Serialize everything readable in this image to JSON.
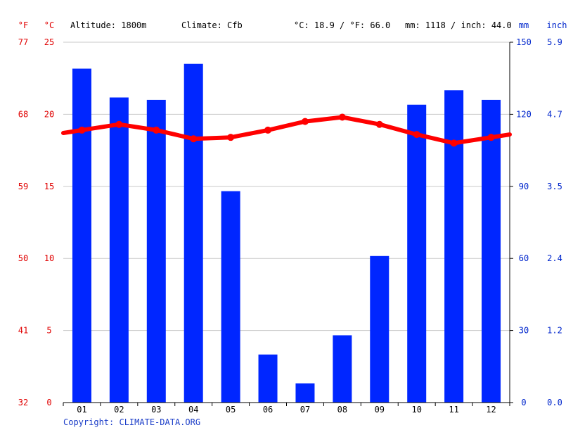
{
  "header": {
    "f_unit": "°F",
    "c_unit": "°C",
    "altitude": "Altitude: 1800m",
    "climate": "Climate: Cfb",
    "temp_summary": "°C: 18.9 / °F: 66.0",
    "precip_summary": "mm: 1118 / inch: 44.0",
    "mm_unit": "mm",
    "inch_unit": "inch"
  },
  "footer": {
    "copyright": "Copyright: CLIMATE-DATA.ORG"
  },
  "colors": {
    "bar": "#0026ff",
    "line": "#ff0000",
    "grid": "#c8c8c8",
    "axis": "#000000",
    "right_text": "#0026cc",
    "left_text": "#e00000",
    "copyright": "#1a3cc8"
  },
  "chart_data": {
    "type": "bar",
    "categories": [
      "01",
      "02",
      "03",
      "04",
      "05",
      "06",
      "07",
      "08",
      "09",
      "10",
      "11",
      "12"
    ],
    "precip_mm": [
      139,
      127,
      126,
      141,
      88,
      20,
      8,
      28,
      61,
      124,
      130,
      126
    ],
    "temp_c": [
      18.9,
      19.3,
      18.9,
      18.3,
      18.4,
      18.9,
      19.5,
      19.8,
      19.3,
      18.6,
      18.0,
      18.4
    ],
    "axes": {
      "c_ticks": [
        "0",
        "5",
        "10",
        "15",
        "20",
        "25"
      ],
      "f_ticks": [
        "32",
        "41",
        "50",
        "59",
        "68",
        "77"
      ],
      "mm_ticks": [
        "0",
        "30",
        "60",
        "90",
        "120",
        "150"
      ],
      "inch_ticks": [
        "0.0",
        "1.2",
        "2.4",
        "3.5",
        "4.7",
        "5.9"
      ],
      "c_range": [
        0,
        25
      ],
      "mm_range": [
        0,
        150
      ]
    },
    "grid": true
  }
}
